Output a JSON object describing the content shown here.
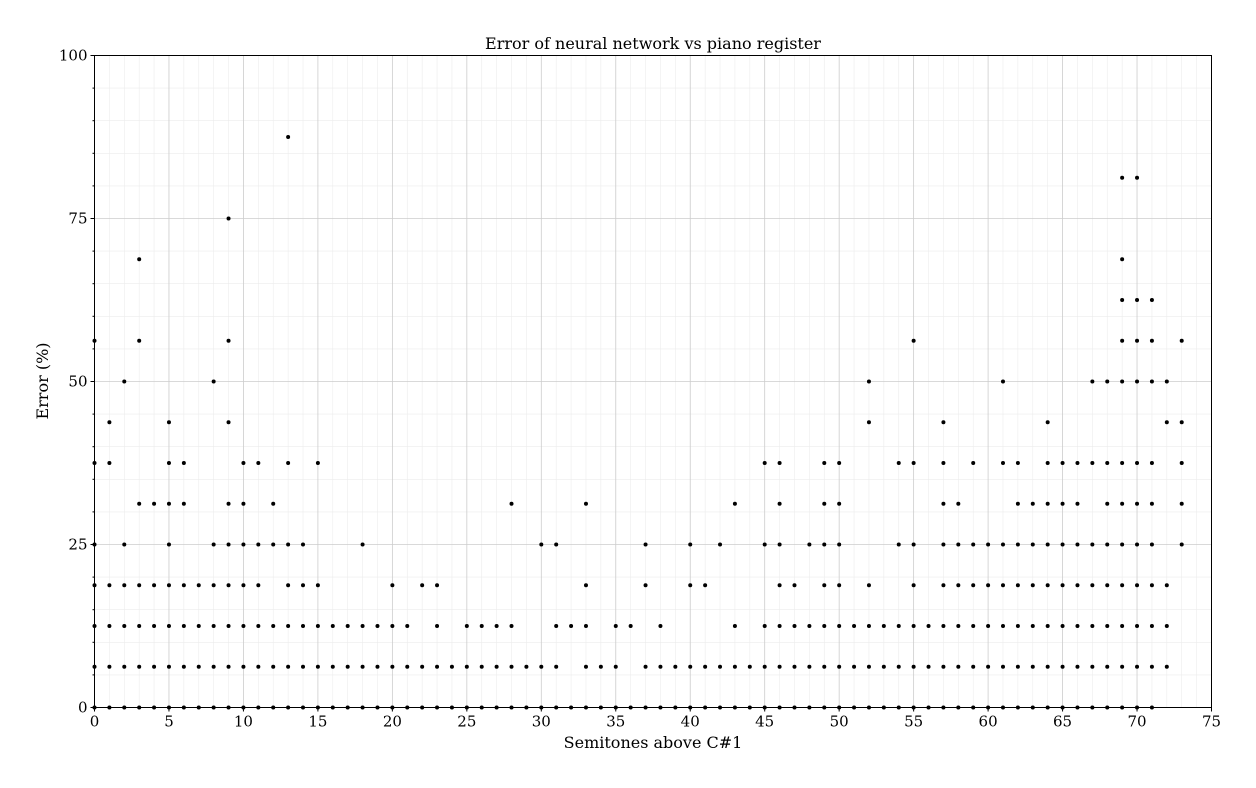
{
  "chart_data": {
    "type": "scatter",
    "title": "Error of neural network vs piano register",
    "xlabel": "Semitones above C#1",
    "ylabel": "Error (%)",
    "xlim": [
      0,
      75
    ],
    "ylim": [
      0,
      100
    ],
    "xticks": [
      0,
      5,
      10,
      15,
      20,
      25,
      30,
      35,
      40,
      45,
      50,
      55,
      60,
      65,
      70,
      75
    ],
    "yticks": [
      0,
      25,
      50,
      75,
      100
    ],
    "grid": true,
    "minor_grid": true,
    "marker_color": "#000000",
    "points": [
      [
        0,
        0
      ],
      [
        0,
        6.25
      ],
      [
        0,
        12.5
      ],
      [
        0,
        18.75
      ],
      [
        0,
        25
      ],
      [
        0,
        37.5
      ],
      [
        0,
        56.25
      ],
      [
        1,
        0
      ],
      [
        1,
        6.25
      ],
      [
        1,
        12.5
      ],
      [
        1,
        18.75
      ],
      [
        1,
        37.5
      ],
      [
        1,
        43.75
      ],
      [
        2,
        0
      ],
      [
        2,
        6.25
      ],
      [
        2,
        12.5
      ],
      [
        2,
        18.75
      ],
      [
        2,
        25
      ],
      [
        2,
        50
      ],
      [
        3,
        0
      ],
      [
        3,
        6.25
      ],
      [
        3,
        12.5
      ],
      [
        3,
        18.75
      ],
      [
        3,
        31.25
      ],
      [
        3,
        56.25
      ],
      [
        3,
        68.75
      ],
      [
        4,
        0
      ],
      [
        4,
        6.25
      ],
      [
        4,
        12.5
      ],
      [
        4,
        18.75
      ],
      [
        4,
        31.25
      ],
      [
        5,
        0
      ],
      [
        5,
        6.25
      ],
      [
        5,
        12.5
      ],
      [
        5,
        18.75
      ],
      [
        5,
        25
      ],
      [
        5,
        31.25
      ],
      [
        5,
        37.5
      ],
      [
        5,
        43.75
      ],
      [
        6,
        0
      ],
      [
        6,
        6.25
      ],
      [
        6,
        12.5
      ],
      [
        6,
        18.75
      ],
      [
        6,
        31.25
      ],
      [
        6,
        37.5
      ],
      [
        7,
        0
      ],
      [
        7,
        6.25
      ],
      [
        7,
        12.5
      ],
      [
        7,
        18.75
      ],
      [
        8,
        0
      ],
      [
        8,
        6.25
      ],
      [
        8,
        12.5
      ],
      [
        8,
        18.75
      ],
      [
        8,
        25
      ],
      [
        8,
        50
      ],
      [
        9,
        0
      ],
      [
        9,
        6.25
      ],
      [
        9,
        12.5
      ],
      [
        9,
        18.75
      ],
      [
        9,
        25
      ],
      [
        9,
        31.25
      ],
      [
        9,
        43.75
      ],
      [
        9,
        56.25
      ],
      [
        9,
        75
      ],
      [
        10,
        0
      ],
      [
        10,
        6.25
      ],
      [
        10,
        12.5
      ],
      [
        10,
        18.75
      ],
      [
        10,
        25
      ],
      [
        10,
        31.25
      ],
      [
        10,
        37.5
      ],
      [
        11,
        0
      ],
      [
        11,
        6.25
      ],
      [
        11,
        12.5
      ],
      [
        11,
        18.75
      ],
      [
        11,
        25
      ],
      [
        11,
        37.5
      ],
      [
        12,
        0
      ],
      [
        12,
        6.25
      ],
      [
        12,
        12.5
      ],
      [
        12,
        25
      ],
      [
        12,
        31.25
      ],
      [
        13,
        0
      ],
      [
        13,
        6.25
      ],
      [
        13,
        12.5
      ],
      [
        13,
        18.75
      ],
      [
        13,
        25
      ],
      [
        13,
        37.5
      ],
      [
        13,
        87.5
      ],
      [
        14,
        0
      ],
      [
        14,
        6.25
      ],
      [
        14,
        12.5
      ],
      [
        14,
        18.75
      ],
      [
        14,
        25
      ],
      [
        15,
        0
      ],
      [
        15,
        6.25
      ],
      [
        15,
        12.5
      ],
      [
        15,
        18.75
      ],
      [
        15,
        37.5
      ],
      [
        16,
        0
      ],
      [
        16,
        6.25
      ],
      [
        16,
        12.5
      ],
      [
        17,
        0
      ],
      [
        17,
        6.25
      ],
      [
        17,
        12.5
      ],
      [
        18,
        0
      ],
      [
        18,
        6.25
      ],
      [
        18,
        12.5
      ],
      [
        18,
        25
      ],
      [
        19,
        0
      ],
      [
        19,
        6.25
      ],
      [
        19,
        12.5
      ],
      [
        20,
        0
      ],
      [
        20,
        6.25
      ],
      [
        20,
        12.5
      ],
      [
        20,
        18.75
      ],
      [
        21,
        0
      ],
      [
        21,
        6.25
      ],
      [
        21,
        12.5
      ],
      [
        22,
        0
      ],
      [
        22,
        6.25
      ],
      [
        22,
        18.75
      ],
      [
        23,
        0
      ],
      [
        23,
        6.25
      ],
      [
        23,
        12.5
      ],
      [
        23,
        18.75
      ],
      [
        24,
        0
      ],
      [
        24,
        6.25
      ],
      [
        25,
        0
      ],
      [
        25,
        6.25
      ],
      [
        25,
        12.5
      ],
      [
        26,
        0
      ],
      [
        26,
        6.25
      ],
      [
        26,
        12.5
      ],
      [
        27,
        0
      ],
      [
        27,
        6.25
      ],
      [
        27,
        12.5
      ],
      [
        28,
        0
      ],
      [
        28,
        6.25
      ],
      [
        28,
        12.5
      ],
      [
        28,
        31.25
      ],
      [
        29,
        0
      ],
      [
        29,
        6.25
      ],
      [
        30,
        0
      ],
      [
        30,
        6.25
      ],
      [
        30,
        25
      ],
      [
        31,
        0
      ],
      [
        31,
        6.25
      ],
      [
        31,
        12.5
      ],
      [
        31,
        25
      ],
      [
        32,
        0
      ],
      [
        32,
        12.5
      ],
      [
        33,
        0
      ],
      [
        33,
        6.25
      ],
      [
        33,
        12.5
      ],
      [
        33,
        18.75
      ],
      [
        33,
        31.25
      ],
      [
        34,
        0
      ],
      [
        34,
        6.25
      ],
      [
        35,
        0
      ],
      [
        35,
        6.25
      ],
      [
        35,
        12.5
      ],
      [
        36,
        0
      ],
      [
        36,
        12.5
      ],
      [
        37,
        0
      ],
      [
        37,
        6.25
      ],
      [
        37,
        18.75
      ],
      [
        37,
        25
      ],
      [
        38,
        0
      ],
      [
        38,
        6.25
      ],
      [
        38,
        12.5
      ],
      [
        39,
        0
      ],
      [
        39,
        6.25
      ],
      [
        40,
        0
      ],
      [
        40,
        6.25
      ],
      [
        40,
        18.75
      ],
      [
        40,
        25
      ],
      [
        41,
        0
      ],
      [
        41,
        6.25
      ],
      [
        41,
        18.75
      ],
      [
        42,
        0
      ],
      [
        42,
        6.25
      ],
      [
        42,
        25
      ],
      [
        43,
        0
      ],
      [
        43,
        6.25
      ],
      [
        43,
        12.5
      ],
      [
        43,
        31.25
      ],
      [
        44,
        0
      ],
      [
        44,
        6.25
      ],
      [
        45,
        0
      ],
      [
        45,
        6.25
      ],
      [
        45,
        12.5
      ],
      [
        45,
        25
      ],
      [
        45,
        37.5
      ],
      [
        46,
        0
      ],
      [
        46,
        6.25
      ],
      [
        46,
        12.5
      ],
      [
        46,
        18.75
      ],
      [
        46,
        25
      ],
      [
        46,
        31.25
      ],
      [
        46,
        37.5
      ],
      [
        47,
        0
      ],
      [
        47,
        6.25
      ],
      [
        47,
        12.5
      ],
      [
        47,
        18.75
      ],
      [
        48,
        0
      ],
      [
        48,
        6.25
      ],
      [
        48,
        12.5
      ],
      [
        48,
        25
      ],
      [
        49,
        0
      ],
      [
        49,
        6.25
      ],
      [
        49,
        12.5
      ],
      [
        49,
        18.75
      ],
      [
        49,
        25
      ],
      [
        49,
        31.25
      ],
      [
        49,
        37.5
      ],
      [
        50,
        0
      ],
      [
        50,
        6.25
      ],
      [
        50,
        12.5
      ],
      [
        50,
        18.75
      ],
      [
        50,
        25
      ],
      [
        50,
        31.25
      ],
      [
        50,
        37.5
      ],
      [
        51,
        0
      ],
      [
        51,
        6.25
      ],
      [
        51,
        12.5
      ],
      [
        52,
        0
      ],
      [
        52,
        6.25
      ],
      [
        52,
        12.5
      ],
      [
        52,
        18.75
      ],
      [
        52,
        43.75
      ],
      [
        52,
        50
      ],
      [
        53,
        0
      ],
      [
        53,
        6.25
      ],
      [
        53,
        12.5
      ],
      [
        54,
        0
      ],
      [
        54,
        6.25
      ],
      [
        54,
        12.5
      ],
      [
        54,
        25
      ],
      [
        54,
        37.5
      ],
      [
        55,
        0
      ],
      [
        55,
        6.25
      ],
      [
        55,
        12.5
      ],
      [
        55,
        18.75
      ],
      [
        55,
        25
      ],
      [
        55,
        37.5
      ],
      [
        55,
        56.25
      ],
      [
        56,
        0
      ],
      [
        56,
        6.25
      ],
      [
        56,
        12.5
      ],
      [
        57,
        0
      ],
      [
        57,
        6.25
      ],
      [
        57,
        12.5
      ],
      [
        57,
        18.75
      ],
      [
        57,
        25
      ],
      [
        57,
        31.25
      ],
      [
        57,
        37.5
      ],
      [
        57,
        43.75
      ],
      [
        58,
        0
      ],
      [
        58,
        6.25
      ],
      [
        58,
        12.5
      ],
      [
        58,
        18.75
      ],
      [
        58,
        25
      ],
      [
        58,
        31.25
      ],
      [
        59,
        0
      ],
      [
        59,
        6.25
      ],
      [
        59,
        12.5
      ],
      [
        59,
        18.75
      ],
      [
        59,
        25
      ],
      [
        59,
        37.5
      ],
      [
        60,
        0
      ],
      [
        60,
        6.25
      ],
      [
        60,
        12.5
      ],
      [
        60,
        18.75
      ],
      [
        60,
        25
      ],
      [
        61,
        0
      ],
      [
        61,
        6.25
      ],
      [
        61,
        12.5
      ],
      [
        61,
        18.75
      ],
      [
        61,
        25
      ],
      [
        61,
        37.5
      ],
      [
        61,
        50
      ],
      [
        62,
        0
      ],
      [
        62,
        6.25
      ],
      [
        62,
        12.5
      ],
      [
        62,
        18.75
      ],
      [
        62,
        25
      ],
      [
        62,
        31.25
      ],
      [
        62,
        37.5
      ],
      [
        63,
        0
      ],
      [
        63,
        6.25
      ],
      [
        63,
        12.5
      ],
      [
        63,
        18.75
      ],
      [
        63,
        25
      ],
      [
        63,
        31.25
      ],
      [
        64,
        0
      ],
      [
        64,
        6.25
      ],
      [
        64,
        12.5
      ],
      [
        64,
        18.75
      ],
      [
        64,
        25
      ],
      [
        64,
        31.25
      ],
      [
        64,
        37.5
      ],
      [
        64,
        43.75
      ],
      [
        65,
        0
      ],
      [
        65,
        6.25
      ],
      [
        65,
        12.5
      ],
      [
        65,
        18.75
      ],
      [
        65,
        25
      ],
      [
        65,
        31.25
      ],
      [
        65,
        37.5
      ],
      [
        66,
        0
      ],
      [
        66,
        6.25
      ],
      [
        66,
        12.5
      ],
      [
        66,
        18.75
      ],
      [
        66,
        25
      ],
      [
        66,
        31.25
      ],
      [
        66,
        37.5
      ],
      [
        67,
        0
      ],
      [
        67,
        6.25
      ],
      [
        67,
        12.5
      ],
      [
        67,
        18.75
      ],
      [
        67,
        25
      ],
      [
        67,
        37.5
      ],
      [
        67,
        50
      ],
      [
        68,
        0
      ],
      [
        68,
        6.25
      ],
      [
        68,
        12.5
      ],
      [
        68,
        18.75
      ],
      [
        68,
        25
      ],
      [
        68,
        31.25
      ],
      [
        68,
        37.5
      ],
      [
        68,
        50
      ],
      [
        69,
        0
      ],
      [
        69,
        6.25
      ],
      [
        69,
        12.5
      ],
      [
        69,
        18.75
      ],
      [
        69,
        25
      ],
      [
        69,
        31.25
      ],
      [
        69,
        37.5
      ],
      [
        69,
        50
      ],
      [
        69,
        56.25
      ],
      [
        69,
        62.5
      ],
      [
        69,
        68.75
      ],
      [
        69,
        81.25
      ],
      [
        70,
        0
      ],
      [
        70,
        6.25
      ],
      [
        70,
        12.5
      ],
      [
        70,
        18.75
      ],
      [
        70,
        25
      ],
      [
        70,
        31.25
      ],
      [
        70,
        37.5
      ],
      [
        70,
        50
      ],
      [
        70,
        56.25
      ],
      [
        70,
        62.5
      ],
      [
        70,
        81.25
      ],
      [
        71,
        0
      ],
      [
        71,
        6.25
      ],
      [
        71,
        12.5
      ],
      [
        71,
        18.75
      ],
      [
        71,
        25
      ],
      [
        71,
        31.25
      ],
      [
        71,
        37.5
      ],
      [
        71,
        50
      ],
      [
        71,
        56.25
      ],
      [
        71,
        62.5
      ],
      [
        72,
        6.25
      ],
      [
        72,
        12.5
      ],
      [
        72,
        18.75
      ],
      [
        72,
        43.75
      ],
      [
        72,
        50
      ],
      [
        73,
        25
      ],
      [
        73,
        31.25
      ],
      [
        73,
        37.5
      ],
      [
        73,
        43.75
      ],
      [
        73,
        56.25
      ]
    ]
  }
}
